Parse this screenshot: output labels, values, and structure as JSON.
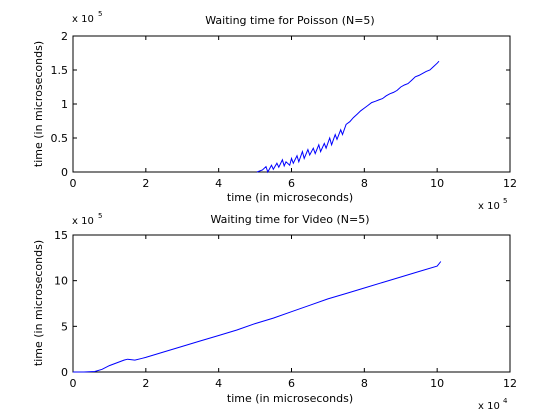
{
  "chart_data": [
    {
      "type": "line",
      "title": "Waiting time for Poisson (N=5)",
      "xlabel": "time (in microseconds)",
      "ylabel": "time (in microseconds)",
      "x_multiplier": {
        "base": "x 10",
        "exp": "5"
      },
      "y_multiplier": {
        "base": "x 10",
        "exp": "5"
      },
      "xlim": [
        0,
        12
      ],
      "ylim": [
        0,
        2
      ],
      "xticks": [
        "0",
        "2",
        "4",
        "6",
        "8",
        "10",
        "12"
      ],
      "yticks": [
        "0",
        "0.5",
        "1",
        "1.5",
        "2"
      ],
      "grid": false,
      "series_color": "#0000ff",
      "series": [
        {
          "x": [
            5.05,
            5.2,
            5.3,
            5.35,
            5.45,
            5.5,
            5.6,
            5.65,
            5.75,
            5.8,
            5.85,
            5.95,
            6.0,
            6.05,
            6.15,
            6.2,
            6.3,
            6.35,
            6.45,
            6.5,
            6.6,
            6.65,
            6.75,
            6.8,
            6.9,
            6.95,
            7.05,
            7.1,
            7.2,
            7.25,
            7.35,
            7.4,
            7.5,
            7.6,
            7.7,
            7.8,
            7.9,
            8.0,
            8.1,
            8.2,
            8.3,
            8.4,
            8.5,
            8.6,
            8.7,
            8.8,
            8.9,
            9.0,
            9.1,
            9.2,
            9.3,
            9.4,
            9.5,
            9.6,
            9.7,
            9.8,
            9.9,
            10.0,
            10.05
          ],
          "y": [
            0.0,
            0.03,
            0.08,
            0.0,
            0.1,
            0.04,
            0.13,
            0.07,
            0.18,
            0.09,
            0.15,
            0.1,
            0.2,
            0.13,
            0.24,
            0.15,
            0.3,
            0.2,
            0.33,
            0.25,
            0.35,
            0.27,
            0.4,
            0.3,
            0.42,
            0.35,
            0.5,
            0.4,
            0.55,
            0.48,
            0.62,
            0.55,
            0.7,
            0.74,
            0.8,
            0.85,
            0.9,
            0.94,
            0.98,
            1.02,
            1.04,
            1.06,
            1.08,
            1.12,
            1.15,
            1.17,
            1.2,
            1.25,
            1.28,
            1.3,
            1.35,
            1.4,
            1.42,
            1.45,
            1.48,
            1.5,
            1.55,
            1.6,
            1.63
          ]
        }
      ]
    },
    {
      "type": "line",
      "title": "Waiting time for Video (N=5)",
      "xlabel": "time (in microseconds)",
      "ylabel": "time (in microseconds)",
      "x_multiplier": {
        "base": "x 10",
        "exp": "4"
      },
      "y_multiplier": {
        "base": "x 10",
        "exp": "5"
      },
      "xlim": [
        0,
        12
      ],
      "ylim": [
        0,
        15
      ],
      "xticks": [
        "0",
        "2",
        "4",
        "6",
        "8",
        "10",
        "12"
      ],
      "yticks": [
        "0",
        "5",
        "10",
        "15"
      ],
      "grid": false,
      "series_color": "#0000ff",
      "series": [
        {
          "x": [
            0,
            0.3,
            0.6,
            0.8,
            1.0,
            1.2,
            1.4,
            1.5,
            1.7,
            1.9,
            2.0,
            2.5,
            3.0,
            3.5,
            4.0,
            4.5,
            5.0,
            5.5,
            6.0,
            6.5,
            7.0,
            7.5,
            8.0,
            8.5,
            9.0,
            9.5,
            10.0,
            10.1
          ],
          "y": [
            0.0,
            0.0,
            0.05,
            0.3,
            0.7,
            1.0,
            1.3,
            1.4,
            1.3,
            1.5,
            1.6,
            2.2,
            2.8,
            3.4,
            4.0,
            4.6,
            5.3,
            5.9,
            6.6,
            7.3,
            8.0,
            8.6,
            9.2,
            9.8,
            10.4,
            11.0,
            11.6,
            12.1
          ]
        }
      ]
    }
  ]
}
